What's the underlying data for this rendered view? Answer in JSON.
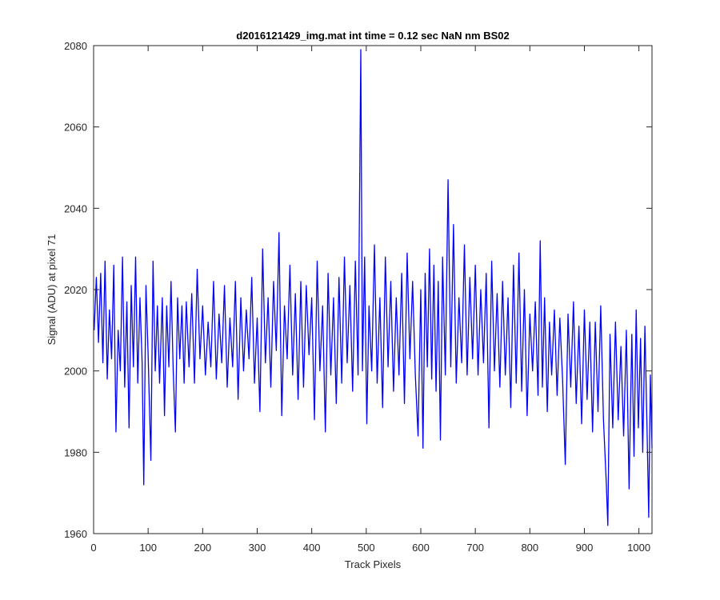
{
  "chart_data": {
    "type": "line",
    "title": "d2016121429_img.mat int time = 0.12 sec  NaN nm BS02",
    "xlabel": "Track Pixels",
    "ylabel": "Signal (ADU) at pixel 71",
    "xlim": [
      0,
      1024
    ],
    "ylim": [
      1960,
      2080
    ],
    "xticks": [
      0,
      100,
      200,
      300,
      400,
      500,
      600,
      700,
      800,
      900,
      1000
    ],
    "yticks": [
      1960,
      1980,
      2000,
      2020,
      2040,
      2060,
      2080
    ],
    "grid": false,
    "x": [
      1,
      5,
      9,
      13,
      17,
      21,
      25,
      29,
      33,
      37,
      41,
      45,
      49,
      53,
      57,
      61,
      65,
      69,
      73,
      77,
      81,
      85,
      89,
      92,
      96,
      100,
      105,
      109,
      113,
      117,
      121,
      126,
      130,
      134,
      138,
      142,
      146,
      150,
      154,
      158,
      162,
      166,
      170,
      175,
      180,
      185,
      190,
      195,
      200,
      205,
      210,
      215,
      220,
      225,
      230,
      235,
      240,
      245,
      250,
      255,
      260,
      265,
      270,
      275,
      280,
      285,
      290,
      295,
      300,
      305,
      310,
      315,
      320,
      325,
      330,
      335,
      340,
      345,
      350,
      355,
      360,
      365,
      370,
      375,
      380,
      385,
      390,
      395,
      400,
      405,
      410,
      415,
      420,
      425,
      430,
      435,
      440,
      445,
      450,
      455,
      460,
      465,
      470,
      475,
      480,
      485,
      490,
      493,
      497,
      501,
      505,
      510,
      515,
      520,
      525,
      530,
      535,
      540,
      545,
      550,
      555,
      560,
      565,
      570,
      575,
      580,
      585,
      590,
      595,
      600,
      604,
      608,
      612,
      616,
      620,
      624,
      628,
      632,
      636,
      640,
      645,
      650,
      655,
      660,
      665,
      670,
      675,
      680,
      685,
      690,
      695,
      700,
      705,
      710,
      715,
      720,
      725,
      730,
      735,
      740,
      745,
      750,
      755,
      760,
      765,
      770,
      775,
      780,
      785,
      790,
      795,
      800,
      805,
      810,
      815,
      819,
      823,
      827,
      832,
      836,
      840,
      845,
      850,
      855,
      860,
      865,
      870,
      875,
      880,
      885,
      890,
      895,
      900,
      905,
      910,
      915,
      920,
      925,
      930,
      935,
      940,
      943,
      947,
      952,
      957,
      962,
      967,
      972,
      977,
      982,
      987,
      991,
      995,
      999,
      1003,
      1007,
      1011,
      1015,
      1018,
      1021,
      1024
    ],
    "series": [
      {
        "name": "signal",
        "color": "#0000ff",
        "values": [
          2010,
          2023,
          2007,
          2024,
          2002,
          2027,
          1998,
          2015,
          2003,
          2026,
          1985,
          2010,
          2000,
          2028,
          1996,
          2017,
          1986,
          2021,
          2001,
          2028,
          1997,
          2018,
          2002,
          1972,
          2021,
          2004,
          1978,
          2027,
          2000,
          2016,
          1997,
          2018,
          1989,
          2016,
          2001,
          2022,
          2000,
          1985,
          2018,
          2003,
          2016,
          1997,
          2017,
          2001,
          2019,
          1997,
          2025,
          2003,
          2016,
          1999,
          2012,
          2001,
          2022,
          1998,
          2014,
          2002,
          2021,
          1996,
          2013,
          2001,
          2022,
          1993,
          2018,
          2000,
          2015,
          2003,
          2023,
          1997,
          2013,
          1990,
          2030,
          2002,
          2018,
          1996,
          2022,
          2005,
          2034,
          1989,
          2016,
          2003,
          2026,
          1999,
          2019,
          1993,
          2022,
          1996,
          2021,
          2004,
          2018,
          1988,
          2027,
          2000,
          2016,
          1985,
          2024,
          1999,
          2018,
          1992,
          2023,
          1997,
          2028,
          2002,
          2021,
          1995,
          2027,
          1999,
          2079,
          2000,
          2028,
          1987,
          2016,
          2000,
          2031,
          1997,
          2018,
          1991,
          2028,
          2001,
          2022,
          1995,
          2018,
          1999,
          2024,
          1992,
          2029,
          2003,
          2022,
          1999,
          1984,
          2020,
          1981,
          2024,
          2001,
          2030,
          1998,
          2026,
          1995,
          2022,
          1983,
          2028,
          1999,
          2047,
          2001,
          2036,
          1997,
          2018,
          2002,
          2031,
          1999,
          2023,
          2003,
          2026,
          1999,
          2020,
          2002,
          2024,
          1986,
          2027,
          2000,
          2019,
          1996,
          2022,
          1999,
          2018,
          1991,
          2026,
          1997,
          2029,
          1995,
          2020,
          1989,
          2014,
          2000,
          2017,
          1994,
          2032,
          1996,
          2018,
          1990,
          2012,
          1999,
          2015,
          1994,
          2013,
          1998,
          1977,
          2014,
          1996,
          2017,
          1992,
          2011,
          1987,
          2015,
          1993,
          2012,
          1985,
          2012,
          1990,
          2016,
          1988,
          1973,
          1962,
          2009,
          1986,
          2012,
          1988,
          2006,
          1984,
          2010,
          1971,
          2009,
          1979,
          2015,
          1986,
          2008,
          1980,
          2011,
          1985,
          1964,
          1999,
          1981
        ]
      }
    ]
  }
}
